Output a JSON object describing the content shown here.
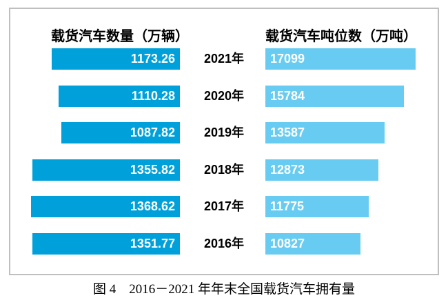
{
  "titles": {
    "left": "载货汽车数量（万辆）",
    "right": "载货汽车吨位数（万吨）"
  },
  "caption": "图 4　2016－2021 年年末全国载货汽车拥有量",
  "rows": [
    {
      "year": "2021年",
      "left_label": "1173.26",
      "right_label": "17099"
    },
    {
      "year": "2020年",
      "left_label": "1110.28",
      "right_label": "15784"
    },
    {
      "year": "2019年",
      "left_label": "1087.82",
      "right_label": "13587"
    },
    {
      "year": "2018年",
      "left_label": "1355.82",
      "right_label": "12873"
    },
    {
      "year": "2017年",
      "left_label": "1368.62",
      "right_label": "11775"
    },
    {
      "year": "2016年",
      "left_label": "1351.77",
      "right_label": "10827"
    }
  ],
  "chart_data": {
    "type": "bar",
    "variant": "tornado-horizontal",
    "categories": [
      "2021年",
      "2020年",
      "2019年",
      "2018年",
      "2017年",
      "2016年"
    ],
    "series": [
      {
        "name": "载货汽车数量（万辆）",
        "side": "left",
        "values": [
          1173.26,
          1110.28,
          1087.82,
          1355.82,
          1368.62,
          1351.77
        ],
        "color": "#00A1DB",
        "xlim": [
          0,
          1400
        ]
      },
      {
        "name": "载货汽车吨位数（万吨）",
        "side": "right",
        "values": [
          17099,
          15784,
          13587,
          12873,
          11775,
          10827
        ],
        "color": "#68CCF2",
        "xlim": [
          0,
          17500
        ]
      }
    ],
    "title": "图 4　2016－2021 年年末全国载货汽车拥有量",
    "xlabel": "",
    "ylabel": "",
    "grid": false,
    "legend_position": "top",
    "value_labels": "inside-bar"
  },
  "colors": {
    "left_bar": "#00A1DB",
    "right_bar": "#68CCF2",
    "bar_value_text": "#FFFFFF",
    "label_text": "#000000",
    "border": "#BFBFBF",
    "background": "#FFFFFF"
  }
}
